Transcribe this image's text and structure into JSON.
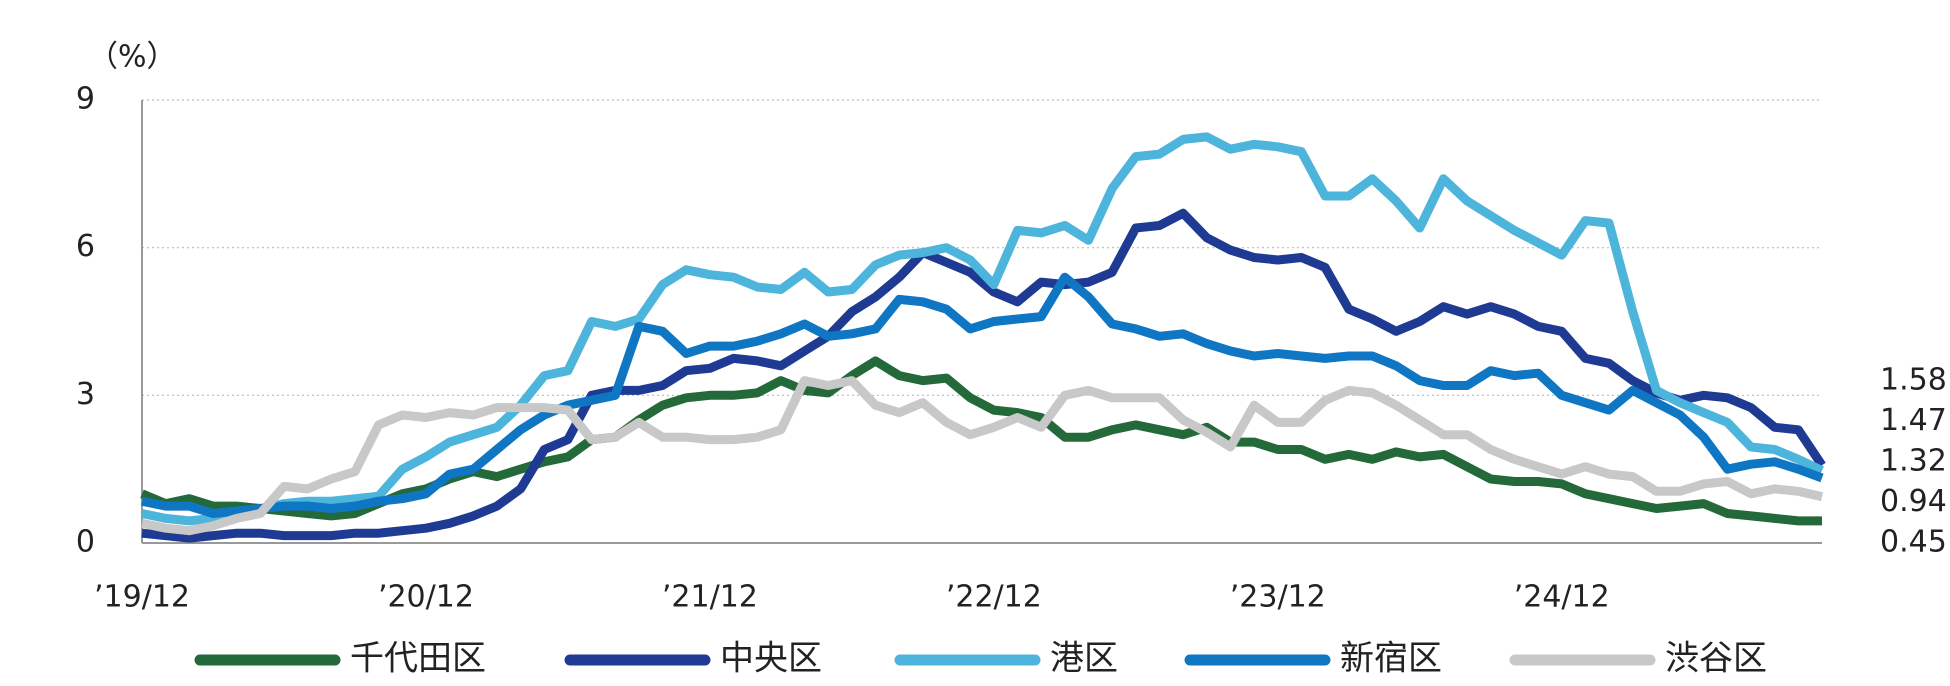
{
  "chart_data": {
    "type": "line",
    "y_label": "（%）",
    "categories": [
      "’19/12",
      null,
      null,
      null,
      null,
      null,
      null,
      null,
      null,
      null,
      null,
      null,
      "’20/12",
      null,
      null,
      null,
      null,
      null,
      null,
      null,
      null,
      null,
      null,
      null,
      "’21/12",
      null,
      null,
      null,
      null,
      null,
      null,
      null,
      null,
      null,
      null,
      null,
      "’22/12",
      null,
      null,
      null,
      null,
      null,
      null,
      null,
      null,
      null,
      null,
      null,
      "’23/12",
      null,
      null,
      null,
      null,
      null,
      null,
      null,
      null,
      null,
      null,
      null,
      "’24/12",
      null,
      null,
      null,
      null,
      null,
      null,
      null,
      null,
      null,
      null,
      null
    ],
    "ylim": [
      0,
      9
    ],
    "yticks": [
      0,
      3,
      6,
      9
    ],
    "grid": true,
    "legend": "bottom",
    "series": [
      {
        "name": "千代田区",
        "color": "#23693a",
        "values": [
          1.0,
          0.8,
          0.9,
          0.75,
          0.75,
          0.7,
          0.65,
          0.6,
          0.55,
          0.6,
          0.8,
          1.0,
          1.1,
          1.3,
          1.45,
          1.35,
          1.5,
          1.65,
          1.75,
          2.1,
          2.15,
          2.5,
          2.8,
          2.95,
          3.0,
          3.0,
          3.05,
          3.3,
          3.1,
          3.05,
          3.4,
          3.7,
          3.4,
          3.3,
          3.35,
          2.95,
          2.7,
          2.65,
          2.55,
          2.15,
          2.15,
          2.3,
          2.4,
          2.3,
          2.2,
          2.35,
          2.05,
          2.05,
          1.9,
          1.9,
          1.7,
          1.8,
          1.7,
          1.85,
          1.75,
          1.8,
          1.55,
          1.3,
          1.25,
          1.25,
          1.2,
          1.0,
          0.9,
          0.8,
          0.7,
          0.75,
          0.8,
          0.6,
          0.55,
          0.5,
          0.45,
          0.45
        ]
      },
      {
        "name": "中央区",
        "color": "#1f3a93",
        "values": [
          0.2,
          0.15,
          0.1,
          0.15,
          0.2,
          0.2,
          0.15,
          0.15,
          0.15,
          0.2,
          0.2,
          0.25,
          0.3,
          0.4,
          0.55,
          0.75,
          1.1,
          1.9,
          2.1,
          3.0,
          3.1,
          3.1,
          3.2,
          3.5,
          3.55,
          3.75,
          3.7,
          3.6,
          3.9,
          4.2,
          4.7,
          5.0,
          5.4,
          5.9,
          5.7,
          5.5,
          5.1,
          4.9,
          5.3,
          5.25,
          5.3,
          5.5,
          6.4,
          6.45,
          6.7,
          6.2,
          5.95,
          5.8,
          5.75,
          5.8,
          5.6,
          4.75,
          4.55,
          4.3,
          4.5,
          4.8,
          4.65,
          4.8,
          4.65,
          4.4,
          4.3,
          3.75,
          3.65,
          3.3,
          3.05,
          2.9,
          3.0,
          2.95,
          2.75,
          2.35,
          2.3,
          1.58
        ]
      },
      {
        "name": "港区",
        "color": "#4db4db",
        "values": [
          0.6,
          0.5,
          0.45,
          0.5,
          0.6,
          0.7,
          0.8,
          0.85,
          0.85,
          0.9,
          0.95,
          1.5,
          1.75,
          2.05,
          2.2,
          2.35,
          2.8,
          3.4,
          3.5,
          4.5,
          4.4,
          4.55,
          5.25,
          5.55,
          5.45,
          5.4,
          5.2,
          5.15,
          5.5,
          5.1,
          5.15,
          5.65,
          5.85,
          5.9,
          6.0,
          5.75,
          5.25,
          6.35,
          6.3,
          6.45,
          6.15,
          7.2,
          7.85,
          7.9,
          8.2,
          8.25,
          8.0,
          8.1,
          8.05,
          7.95,
          7.05,
          7.05,
          7.4,
          6.95,
          6.4,
          7.4,
          6.95,
          6.65,
          6.35,
          6.1,
          5.85,
          6.55,
          6.5,
          4.7,
          3.1,
          2.85,
          2.65,
          2.45,
          1.95,
          1.9,
          1.7,
          1.47
        ]
      },
      {
        "name": "新宿区",
        "color": "#0f76c4",
        "values": [
          0.85,
          0.75,
          0.75,
          0.6,
          0.65,
          0.7,
          0.75,
          0.75,
          0.7,
          0.75,
          0.85,
          0.9,
          1.0,
          1.4,
          1.5,
          1.9,
          2.3,
          2.6,
          2.8,
          2.9,
          3.0,
          4.4,
          4.3,
          3.85,
          4.0,
          4.0,
          4.1,
          4.25,
          4.45,
          4.2,
          4.25,
          4.35,
          4.95,
          4.9,
          4.75,
          4.35,
          4.5,
          4.55,
          4.6,
          5.4,
          5.0,
          4.45,
          4.35,
          4.2,
          4.25,
          4.05,
          3.9,
          3.8,
          3.85,
          3.8,
          3.75,
          3.8,
          3.8,
          3.6,
          3.3,
          3.2,
          3.2,
          3.5,
          3.4,
          3.45,
          3.0,
          2.85,
          2.7,
          3.1,
          2.85,
          2.6,
          2.15,
          1.5,
          1.6,
          1.65,
          1.5,
          1.32
        ]
      },
      {
        "name": "渋谷区",
        "color": "#c8c8c8",
        "values": [
          0.4,
          0.3,
          0.25,
          0.35,
          0.5,
          0.6,
          1.15,
          1.1,
          1.3,
          1.45,
          2.4,
          2.6,
          2.55,
          2.65,
          2.6,
          2.75,
          2.75,
          2.75,
          2.7,
          2.1,
          2.15,
          2.45,
          2.15,
          2.15,
          2.1,
          2.1,
          2.15,
          2.3,
          3.3,
          3.2,
          3.3,
          2.8,
          2.65,
          2.85,
          2.45,
          2.2,
          2.35,
          2.55,
          2.35,
          3.0,
          3.1,
          2.95,
          2.95,
          2.95,
          2.5,
          2.25,
          1.95,
          2.8,
          2.45,
          2.45,
          2.9,
          3.1,
          3.05,
          2.8,
          2.5,
          2.2,
          2.2,
          1.9,
          1.7,
          1.55,
          1.4,
          1.55,
          1.4,
          1.35,
          1.05,
          1.05,
          1.2,
          1.25,
          1.0,
          1.1,
          1.05,
          0.94
        ]
      }
    ]
  }
}
